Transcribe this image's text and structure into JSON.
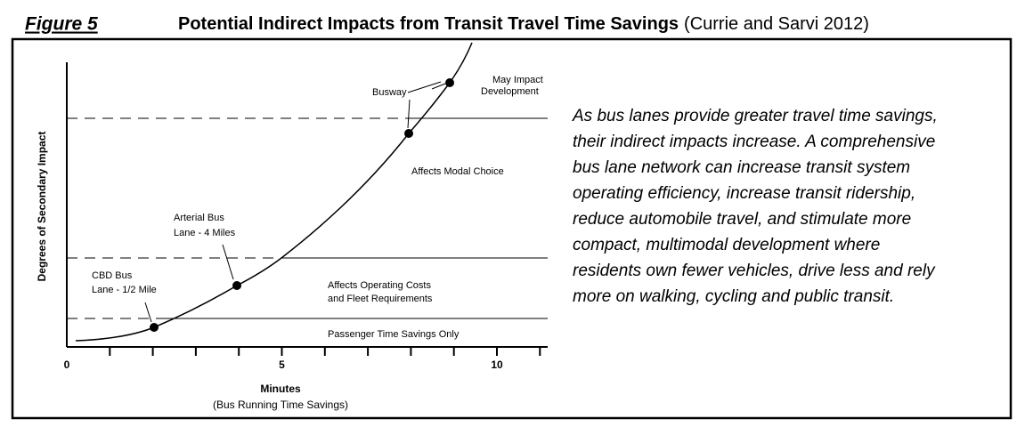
{
  "header": {
    "figure_label": "Figure 5",
    "title": "Potential Indirect Impacts from Transit Travel Time Savings",
    "source": "(Currie and Sarvi 2012)"
  },
  "figure": {
    "y_axis_label": "Degrees of Secondary Impact",
    "x_axis_label": "Minutes",
    "x_axis_sublabel": "(Bus Running Time Savings)",
    "x_tick_labels": [
      0,
      5,
      10
    ],
    "zones": [
      "Affects Modal Choice",
      "Affects Operating Costs",
      "and Fleet Requirements",
      "Passenger Time Savings Only"
    ],
    "points": [
      {
        "lines": [
          "CBD Bus",
          "Lane - 1/2 Mile"
        ]
      },
      {
        "lines": [
          "Arterial Bus",
          "Lane - 4 Miles"
        ]
      },
      {
        "lines": [
          "Busway"
        ]
      },
      {
        "lines": [
          "May Impact",
          "Development"
        ]
      }
    ]
  },
  "description": [
    "As bus lanes provide greater travel time savings,",
    "their indirect impacts increase. A comprehensive",
    "bus lane network can increase transit system",
    "operating efficiency, increase transit ridership,",
    "reduce automobile travel, and stimulate more",
    "compact, multimodal development where",
    "residents own fewer vehicles, drive less and rely",
    "more on walking, cycling and public transit."
  ]
}
